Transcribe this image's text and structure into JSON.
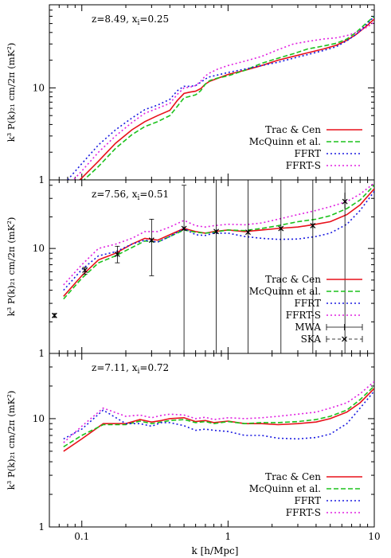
{
  "chart_data": {
    "type": "line",
    "xlabel": "k [h/Mpc]",
    "xscale": "log",
    "xlim": [
      0.06,
      10
    ],
    "xticks": [
      {
        "value": 0.1,
        "label": "0.1"
      },
      {
        "value": 1,
        "label": "1"
      },
      {
        "value": 10,
        "label": "10"
      }
    ],
    "colors": {
      "Trac & Cen": "#e8101a",
      "McQuinn et al.": "#1cc21c",
      "FFRT": "#1a1ae0",
      "FFRT-S": "#e020e0",
      "MWA": "#000000",
      "SKA": "#000000"
    },
    "panels": [
      {
        "annotation": "z=8.49, x",
        "annotation_sub": "i",
        "annotation_tail": "=0.25",
        "ylabel": "k³ P(k)₂₁ cm/2π  (mK²)",
        "yscale": "log",
        "ylim": [
          1,
          80
        ],
        "yticks": [
          {
            "value": 1,
            "label": "1"
          },
          {
            "value": 10,
            "label": "10"
          }
        ],
        "legend": [
          "Trac & Cen",
          "McQuinn et al.",
          "FFRT",
          "FFRT-S"
        ],
        "series": [
          {
            "name": "Trac & Cen",
            "style": "solid",
            "x": [
              0.09,
              0.1,
              0.13,
              0.17,
              0.22,
              0.27,
              0.33,
              0.4,
              0.45,
              0.5,
              0.55,
              0.6,
              0.65,
              0.7,
              0.75,
              0.85,
              1.0,
              1.3,
              1.7,
              2.2,
              2.8,
              3.5,
              4.5,
              5.5,
              6.5,
              7.5,
              9.0,
              10.0
            ],
            "y": [
              0.9,
              1.05,
              1.6,
              2.5,
              3.5,
              4.3,
              5.0,
              5.7,
              7.3,
              8.7,
              9.0,
              9.2,
              9.8,
              11.0,
              11.8,
              12.7,
              14.0,
              15.5,
              17.5,
              20.0,
              22.0,
              24.0,
              26.5,
              29.0,
              33.0,
              38.0,
              48.0,
              56.0
            ]
          },
          {
            "name": "McQuinn et al.",
            "style": "dashed",
            "x": [
              0.1,
              0.13,
              0.17,
              0.22,
              0.27,
              0.33,
              0.4,
              0.45,
              0.5,
              0.55,
              0.6,
              0.65,
              0.7,
              0.75,
              0.85,
              1.0,
              1.3,
              1.7,
              2.2,
              2.8,
              3.5,
              4.5,
              5.5,
              6.5,
              7.5,
              9.0,
              10.0
            ],
            "y": [
              0.95,
              1.4,
              2.2,
              3.1,
              3.8,
              4.3,
              5.0,
              6.3,
              7.8,
              8.1,
              8.4,
              9.3,
              11.0,
              12.0,
              12.8,
              13.5,
              15.5,
              18.5,
              21.0,
              23.5,
              26.5,
              28.5,
              30.5,
              34.0,
              40.0,
              52.0,
              60.0
            ]
          },
          {
            "name": "FFRT",
            "style": "dotted",
            "x": [
              0.08,
              0.1,
              0.13,
              0.17,
              0.22,
              0.27,
              0.33,
              0.4,
              0.45,
              0.5,
              0.55,
              0.6,
              0.65,
              0.7,
              0.75,
              0.85,
              1.0,
              1.3,
              1.7,
              2.2,
              2.8,
              3.5,
              4.5,
              5.5,
              6.5,
              7.5,
              9.0,
              10.0
            ],
            "y": [
              1.0,
              1.5,
              2.4,
              3.5,
              4.7,
              5.8,
              6.5,
              7.5,
              9.3,
              10.4,
              10.4,
              10.6,
              11.5,
              12.5,
              13.2,
              13.8,
              14.7,
              16.0,
              17.5,
              19.0,
              21.0,
              23.0,
              25.5,
              28.0,
              32.5,
              38.0,
              50.0,
              60.0
            ]
          },
          {
            "name": "FFRT-S",
            "style": "dotted",
            "x": [
              0.085,
              0.1,
              0.13,
              0.17,
              0.22,
              0.27,
              0.33,
              0.4,
              0.45,
              0.5,
              0.55,
              0.6,
              0.65,
              0.7,
              0.75,
              0.85,
              1.0,
              1.3,
              1.7,
              2.2,
              2.8,
              3.5,
              4.5,
              5.5,
              6.5,
              7.5,
              9.0,
              10.0
            ],
            "y": [
              0.95,
              1.25,
              2.0,
              3.0,
              4.2,
              5.3,
              6.0,
              6.8,
              8.5,
              10.0,
              10.2,
              10.6,
              11.8,
              13.5,
              14.5,
              16.0,
              17.5,
              19.5,
              22.0,
              26.0,
              30.0,
              32.0,
              34.0,
              35.0,
              37.0,
              40.0,
              46.0,
              52.0
            ]
          }
        ]
      },
      {
        "annotation": "z=7.56, x",
        "annotation_sub": "i",
        "annotation_tail": "=0.51",
        "ylabel": "k³ P(k)₂₁ cm/2π  (mK²)",
        "yscale": "log",
        "ylim": [
          1,
          45
        ],
        "yticks": [
          {
            "value": 1,
            "label": "1"
          },
          {
            "value": 10,
            "label": "10"
          }
        ],
        "legend": [
          "Trac & Cen",
          "McQuinn et al.",
          "FFRT",
          "FFRT-S",
          "MWA",
          "SKA"
        ],
        "series": [
          {
            "name": "Trac & Cen",
            "style": "solid",
            "x": [
              0.075,
              0.1,
              0.13,
              0.17,
              0.22,
              0.27,
              0.33,
              0.4,
              0.5,
              0.6,
              0.7,
              0.8,
              1.0,
              1.3,
              1.7,
              2.2,
              3.0,
              4.0,
              5.0,
              6.5,
              8.0,
              10.0
            ],
            "y": [
              3.5,
              5.5,
              7.8,
              9.0,
              11.0,
              12.5,
              12.0,
              13.5,
              15.5,
              14.5,
              14.0,
              14.5,
              15.0,
              14.5,
              15.0,
              15.5,
              16.0,
              17.0,
              18.0,
              21.0,
              26.0,
              37.0
            ]
          },
          {
            "name": "McQuinn et al.",
            "style": "dashed",
            "x": [
              0.075,
              0.1,
              0.13,
              0.17,
              0.22,
              0.27,
              0.33,
              0.4,
              0.5,
              0.6,
              0.7,
              0.8,
              1.0,
              1.3,
              1.7,
              2.2,
              3.0,
              4.0,
              5.0,
              6.5,
              8.0,
              10.0
            ],
            "y": [
              3.3,
              5.2,
              7.3,
              8.5,
              10.2,
              11.8,
              11.5,
              13.0,
              15.0,
              14.3,
              14.0,
              14.3,
              15.0,
              14.8,
              15.5,
              16.5,
              18.0,
              19.0,
              20.5,
              24.0,
              29.0,
              40.0
            ]
          },
          {
            "name": "FFRT",
            "style": "dotted",
            "x": [
              0.075,
              0.1,
              0.13,
              0.17,
              0.22,
              0.27,
              0.33,
              0.4,
              0.5,
              0.6,
              0.7,
              0.8,
              1.0,
              1.3,
              1.7,
              2.2,
              3.0,
              4.0,
              5.0,
              6.5,
              8.0,
              10.0
            ],
            "y": [
              4.0,
              6.3,
              8.5,
              9.3,
              11.0,
              12.0,
              11.5,
              13.0,
              15.5,
              13.5,
              13.3,
              14.0,
              14.0,
              13.0,
              12.5,
              12.2,
              12.3,
              13.0,
              14.0,
              17.0,
              23.0,
              35.0
            ]
          },
          {
            "name": "FFRT-S",
            "style": "dotted",
            "x": [
              0.075,
              0.1,
              0.13,
              0.17,
              0.22,
              0.27,
              0.33,
              0.4,
              0.5,
              0.6,
              0.7,
              0.8,
              1.0,
              1.3,
              1.7,
              2.2,
              3.0,
              4.0,
              5.0,
              6.5,
              8.0,
              10.0
            ],
            "y": [
              4.5,
              7.0,
              10.0,
              11.0,
              12.5,
              14.5,
              14.5,
              16.0,
              18.5,
              16.5,
              16.0,
              16.5,
              17.0,
              16.8,
              17.5,
              19.0,
              21.0,
              23.0,
              25.0,
              28.0,
              33.0,
              42.0
            ]
          }
        ],
        "mwa": {
          "x": [
            0.065,
            0.105,
            0.175,
            0.3,
            0.5,
            0.83,
            1.37,
            2.3,
            3.8,
            6.3
          ],
          "y": [
            2.3,
            6.1,
            8.8,
            12.0,
            15.5,
            14.5,
            14.8,
            15.5,
            16.5,
            28.0
          ],
          "ylo": [
            2.2,
            5.7,
            7.3,
            5.5,
            1.0,
            1.0,
            1.0,
            1.0,
            1.0,
            1.0
          ],
          "yhi": [
            2.4,
            6.6,
            10.5,
            19.0,
            40.0,
            45.0,
            45.0,
            45.0,
            45.0,
            45.0
          ]
        },
        "ska": {
          "x": [
            0.065,
            0.105,
            0.175,
            0.3,
            0.5,
            0.83,
            1.37,
            2.3,
            3.8,
            6.3
          ],
          "y": [
            2.3,
            6.2,
            8.8,
            12.0,
            15.5,
            14.5,
            14.3,
            15.5,
            16.5,
            28.0
          ],
          "ylo": [
            2.2,
            5.8,
            8.3,
            11.5,
            14.8,
            13.8,
            13.6,
            14.8,
            15.5,
            24.0
          ],
          "yhi": [
            2.4,
            6.6,
            9.3,
            12.5,
            16.2,
            15.2,
            15.0,
            16.2,
            17.5,
            34.0
          ]
        }
      },
      {
        "annotation": "z=7.11, x",
        "annotation_sub": "i",
        "annotation_tail": "=0.72",
        "ylabel": "k³ P(k)₂₁ cm/2π  (mK²)",
        "yscale": "log",
        "ylim": [
          1,
          40
        ],
        "yticks": [
          {
            "value": 1,
            "label": "1"
          },
          {
            "value": 10,
            "label": "10"
          }
        ],
        "legend": [
          "Trac & Cen",
          "McQuinn et al.",
          "FFRT",
          "FFRT-S"
        ],
        "series": [
          {
            "name": "Trac & Cen",
            "style": "solid",
            "x": [
              0.075,
              0.1,
              0.14,
              0.2,
              0.25,
              0.3,
              0.35,
              0.4,
              0.5,
              0.6,
              0.7,
              0.8,
              1.0,
              1.3,
              1.7,
              2.2,
              3.0,
              4.0,
              5.0,
              6.5,
              8.0,
              10.0
            ],
            "y": [
              5.0,
              6.5,
              9.0,
              9.0,
              9.8,
              9.3,
              9.6,
              10.0,
              10.2,
              9.4,
              9.6,
              9.2,
              9.5,
              9.0,
              9.0,
              8.8,
              9.0,
              9.3,
              10.0,
              11.5,
              14.0,
              19.0
            ]
          },
          {
            "name": "McQuinn et al.",
            "style": "dashed",
            "x": [
              0.075,
              0.1,
              0.14,
              0.2,
              0.25,
              0.3,
              0.35,
              0.4,
              0.5,
              0.6,
              0.7,
              0.8,
              1.0,
              1.3,
              1.7,
              2.2,
              3.0,
              4.0,
              5.0,
              6.5,
              8.0,
              10.0
            ],
            "y": [
              5.5,
              7.0,
              8.8,
              8.8,
              9.5,
              9.0,
              9.3,
              9.6,
              9.8,
              9.2,
              9.4,
              9.0,
              9.4,
              9.0,
              9.2,
              9.2,
              9.4,
              9.8,
              10.5,
              12.0,
              15.0,
              20.0
            ]
          },
          {
            "name": "FFRT",
            "style": "dotted",
            "x": [
              0.075,
              0.1,
              0.14,
              0.2,
              0.25,
              0.3,
              0.35,
              0.4,
              0.5,
              0.6,
              0.7,
              0.8,
              1.0,
              1.3,
              1.7,
              2.2,
              3.0,
              4.0,
              5.0,
              6.5,
              8.0,
              10.0
            ],
            "y": [
              6.5,
              8.0,
              12.0,
              9.0,
              9.0,
              8.5,
              9.2,
              9.2,
              8.6,
              7.8,
              8.0,
              7.8,
              7.6,
              7.0,
              7.0,
              6.6,
              6.5,
              6.7,
              7.2,
              9.0,
              12.5,
              18.0
            ]
          },
          {
            "name": "FFRT-S",
            "style": "dotted",
            "x": [
              0.075,
              0.1,
              0.14,
              0.2,
              0.25,
              0.3,
              0.35,
              0.4,
              0.5,
              0.6,
              0.7,
              0.8,
              1.0,
              1.3,
              1.7,
              2.2,
              3.0,
              4.0,
              5.0,
              6.5,
              8.0,
              10.0
            ],
            "y": [
              6.0,
              8.5,
              12.5,
              10.5,
              10.8,
              10.2,
              10.7,
              11.0,
              10.8,
              10.0,
              10.3,
              9.8,
              10.2,
              10.0,
              10.2,
              10.5,
              11.0,
              11.5,
              12.5,
              14.0,
              17.0,
              22.0
            ]
          }
        ]
      }
    ]
  }
}
